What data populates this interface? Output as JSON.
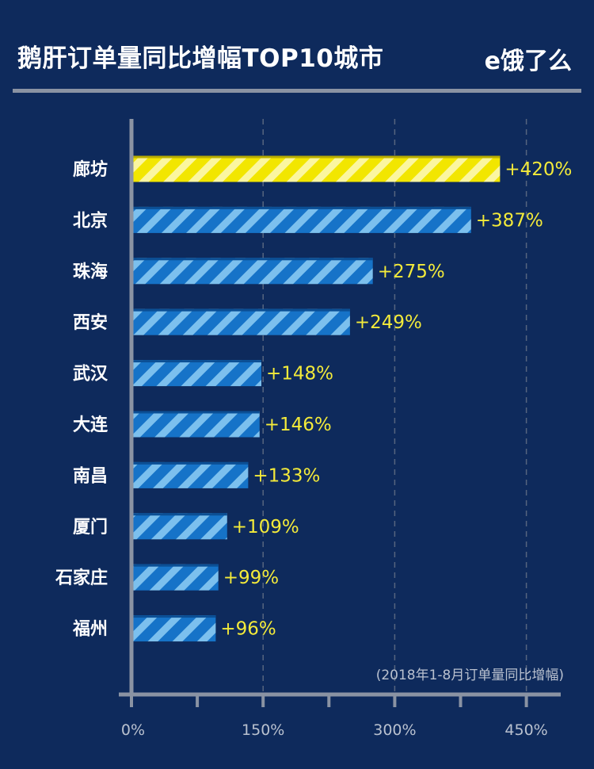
{
  "header": {
    "title": "鹅肝订单量同比增幅TOP10城市",
    "logo_text": "e饿了么"
  },
  "colors": {
    "background": "#0e2a5c",
    "highlight_bar": "#f2e600",
    "highlight_stripe": "#fbf6a0",
    "bar": "#1673c8",
    "bar_stripe": "#7cc0ee",
    "axis": "#8a93a3",
    "value_label": "#f3ea3a"
  },
  "chart_data": {
    "type": "bar",
    "orientation": "horizontal",
    "title": "鹅肝订单量同比增幅TOP10城市",
    "note": "(2018年1-8月订单量同比增幅)",
    "categories": [
      "廊坊",
      "北京",
      "珠海",
      "西安",
      "武汉",
      "大连",
      "南昌",
      "厦门",
      "石家庄",
      "福州"
    ],
    "values": [
      420,
      387,
      275,
      249,
      148,
      146,
      133,
      109,
      99,
      96
    ],
    "value_labels": [
      "+420%",
      "+387%",
      "+275%",
      "+249%",
      "+148%",
      "+146%",
      "+133%",
      "+109%",
      "+99%",
      "+96%"
    ],
    "highlight_index": 0,
    "xlim": [
      0,
      500
    ],
    "xticks": [
      0,
      150,
      300,
      450
    ],
    "xtick_labels": [
      "0%",
      "150%",
      "300%",
      "450%"
    ],
    "minor_ticks": [
      75,
      225,
      375
    ],
    "grid": true
  }
}
